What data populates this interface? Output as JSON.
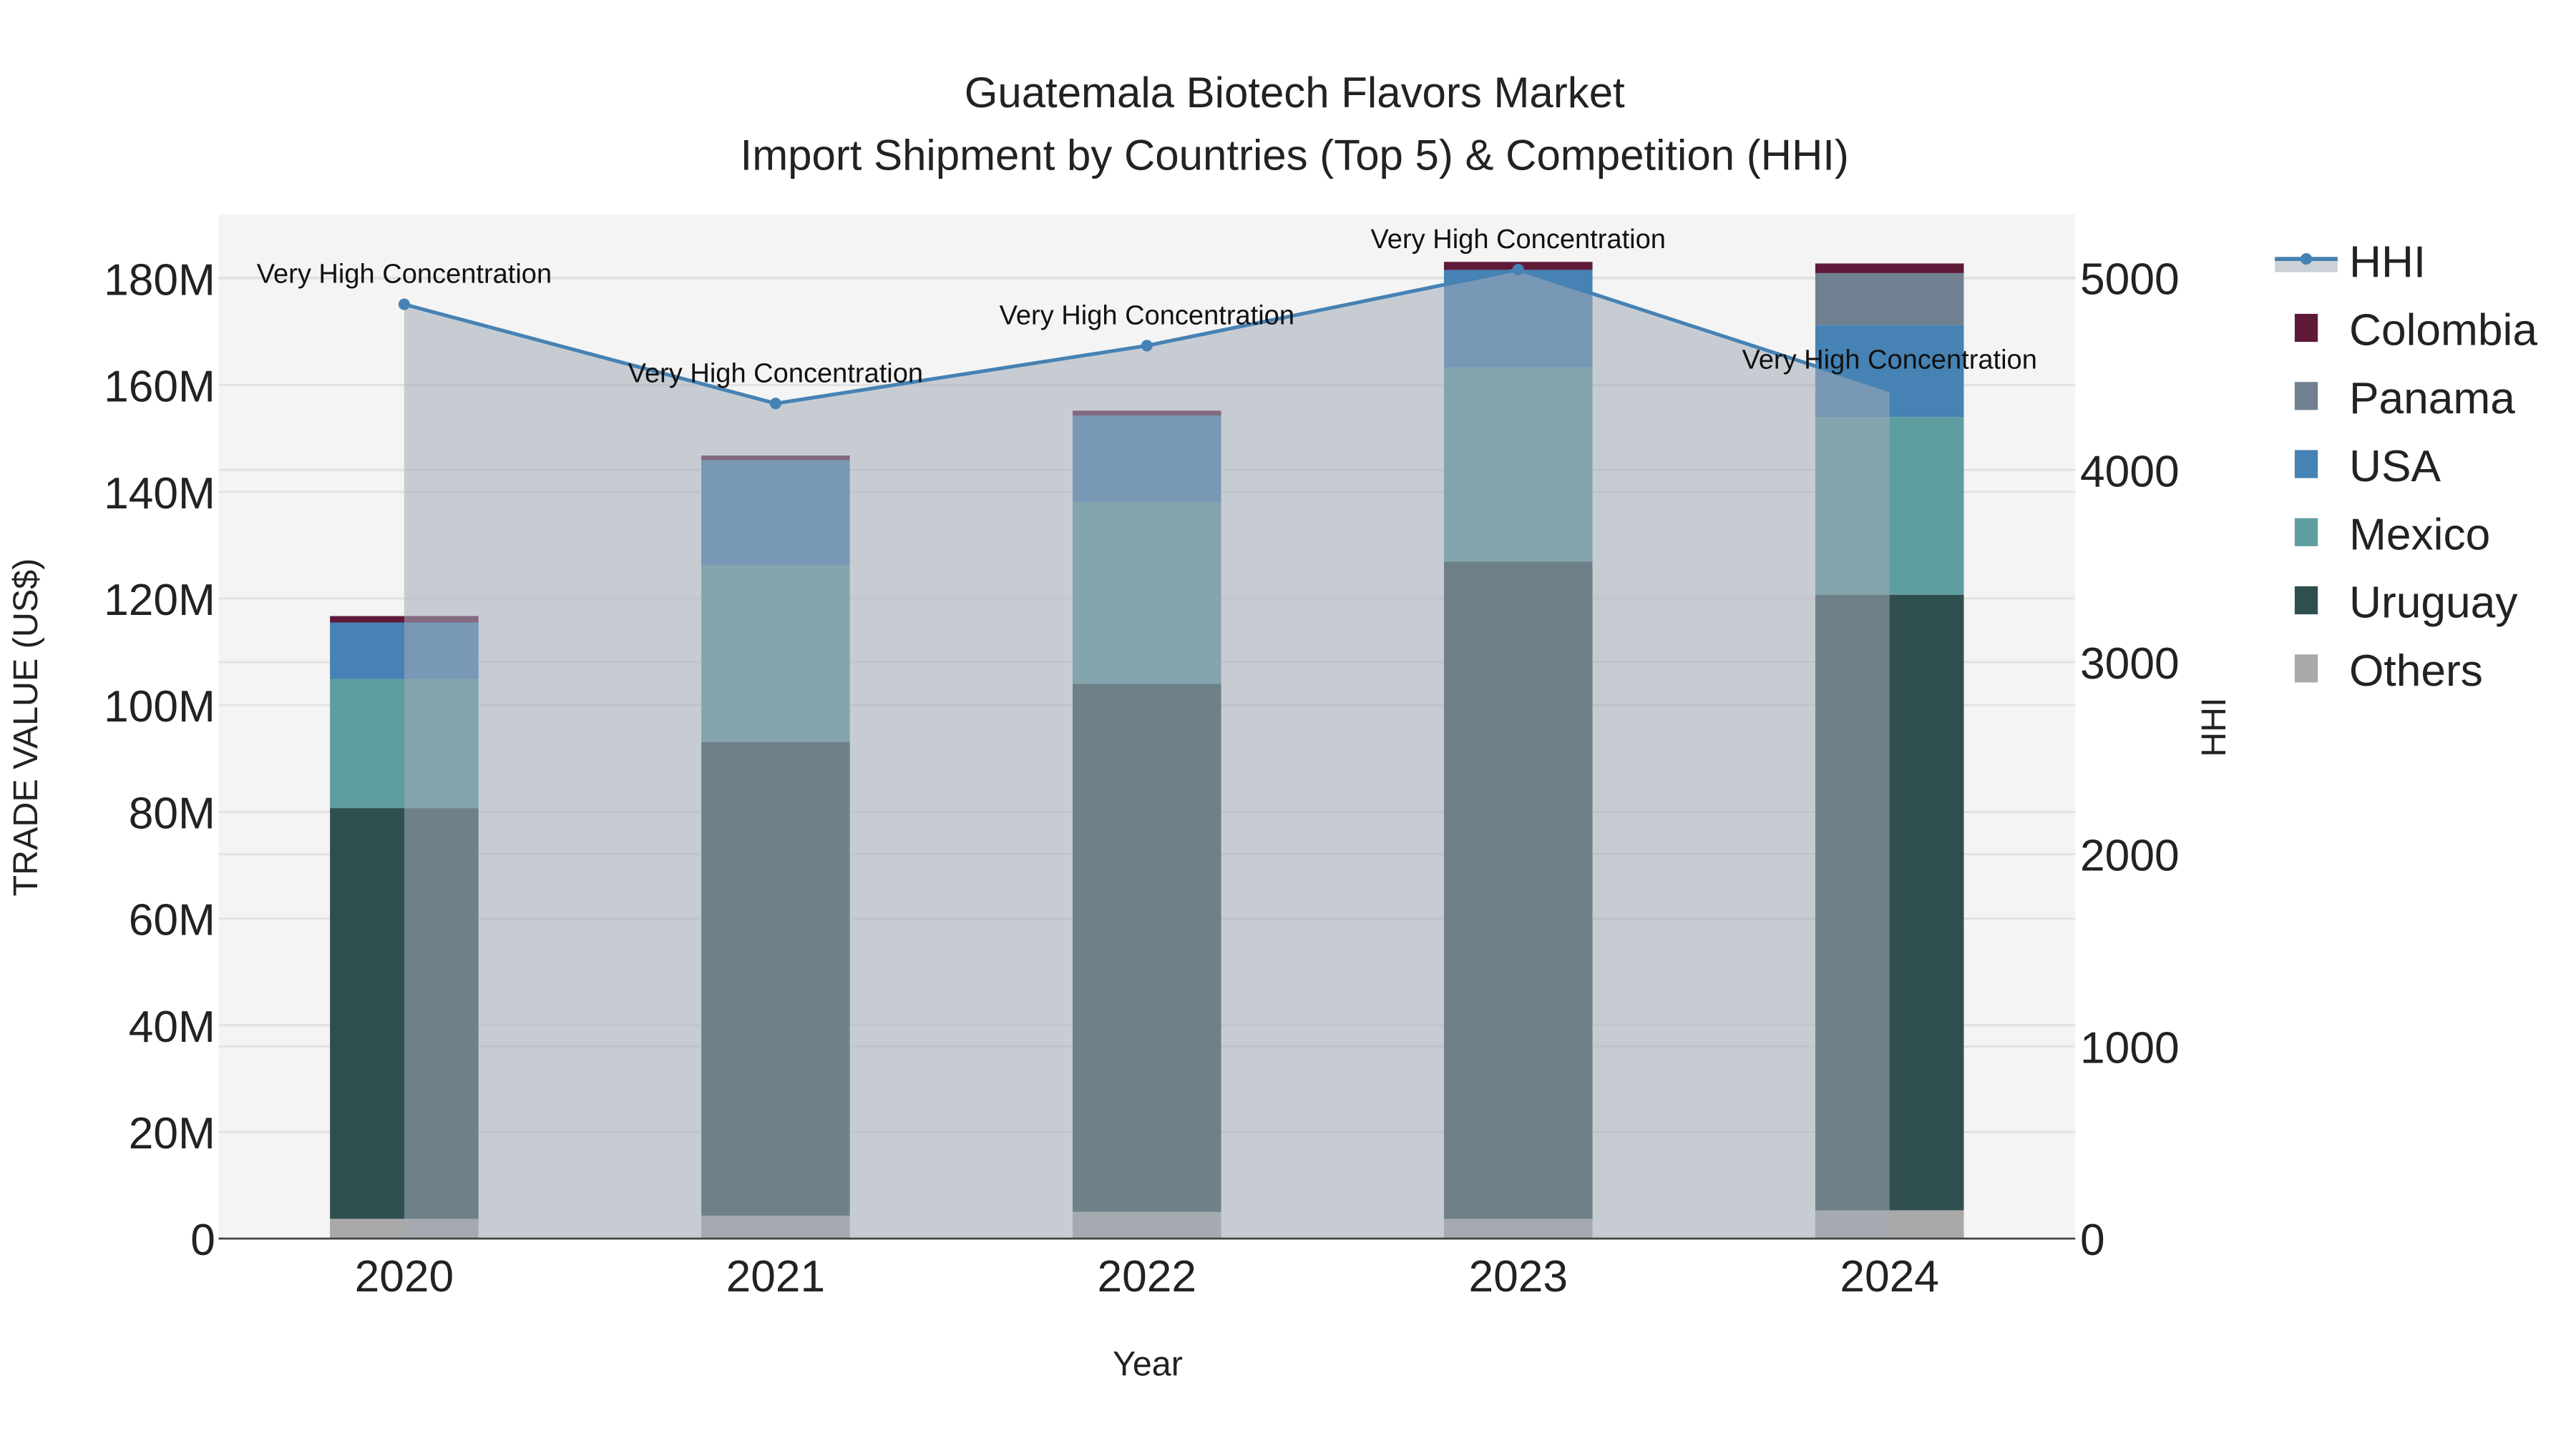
{
  "chart_data": {
    "type": "bar",
    "title": "Guatemala Biotech Flavors Market",
    "subtitle": "Import Shipment by Countries (Top 5) & Competition (HHI)",
    "xlabel": "Year",
    "ylabel": "TRADE VALUE (US$)",
    "y2label": "HHI",
    "categories": [
      "2020",
      "2021",
      "2022",
      "2023",
      "2024"
    ],
    "ylim": [
      0,
      192000000
    ],
    "y2lim": [
      0,
      5330
    ],
    "yticks": [
      0,
      20000000,
      40000000,
      60000000,
      80000000,
      100000000,
      120000000,
      140000000,
      160000000,
      180000000
    ],
    "ytick_labels": [
      "0",
      "20M",
      "40M",
      "60M",
      "80M",
      "100M",
      "120M",
      "140M",
      "160M",
      "180M"
    ],
    "y2ticks": [
      0,
      1000,
      2000,
      3000,
      4000,
      5000
    ],
    "y2tick_labels": [
      "0",
      "1000",
      "2000",
      "3000",
      "4000",
      "5000"
    ],
    "stacked": true,
    "series": [
      {
        "name": "Others",
        "color": "#a9a9a9",
        "values": [
          3700000,
          4300000,
          5000000,
          3700000,
          5300000
        ]
      },
      {
        "name": "Uruguay",
        "color": "#2f4f4f",
        "values": [
          77000000,
          88800000,
          99000000,
          123200000,
          115400000
        ]
      },
      {
        "name": "Mexico",
        "color": "#5f9ea0",
        "values": [
          24200000,
          33200000,
          34100000,
          36400000,
          33300000
        ]
      },
      {
        "name": "USA",
        "color": "#4682b4",
        "values": [
          10600000,
          19600000,
          16200000,
          18300000,
          17300000
        ]
      },
      {
        "name": "Panama",
        "color": "#708090",
        "values": [
          0,
          0,
          0,
          0,
          9700000
        ]
      },
      {
        "name": "Colombia",
        "color": "#5f1a3a",
        "values": [
          1200000,
          900000,
          900000,
          1500000,
          1800000
        ]
      }
    ],
    "hhi": {
      "name": "HHI",
      "color": "#4682b4",
      "values": [
        4862,
        4346,
        4647,
        5043,
        4415
      ]
    },
    "annotations": [
      "Very High Concentration",
      "Very High Concentration",
      "Very High Concentration",
      "Very High Concentration",
      "Very High Concentration"
    ],
    "legend_order": [
      "HHI",
      "Colombia",
      "Panama",
      "USA",
      "Mexico",
      "Uruguay",
      "Others"
    ],
    "legend_position": "right",
    "grid": true
  }
}
